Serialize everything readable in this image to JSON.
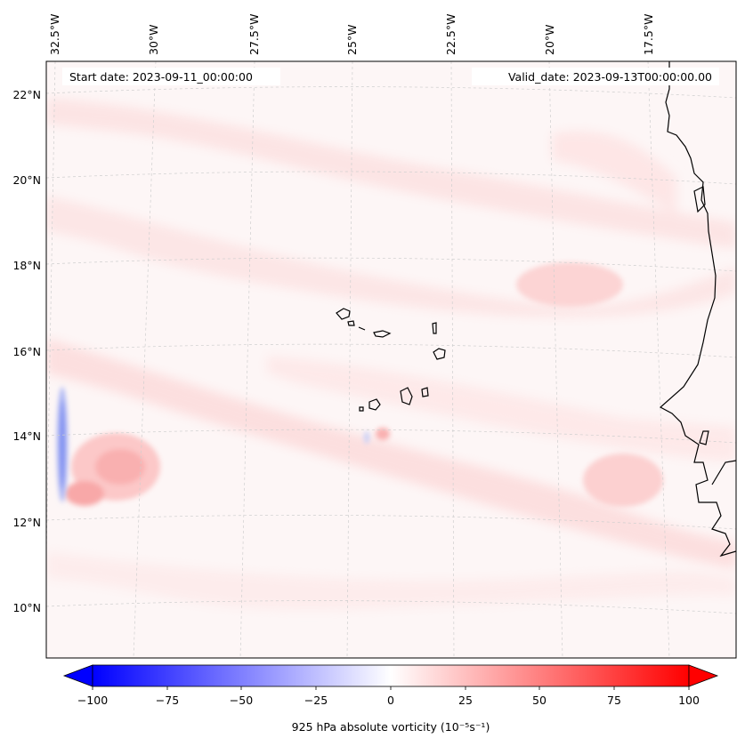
{
  "map": {
    "start_label": "Start date: 2023-09-11_00:00:00",
    "valid_label": "Valid_date: 2023-09-13T00:00:00.00",
    "projection": "conic (meridians converging southward)",
    "gridlines": "dashed light grey",
    "lon_ticks": [
      "32.5°W",
      "30°W",
      "27.5°W",
      "25°W",
      "22.5°W",
      "20°W",
      "17.5°W"
    ],
    "lat_ticks": [
      "22°N",
      "20°N",
      "18°N",
      "16°N",
      "14°N",
      "12°N",
      "10°N"
    ],
    "features": [
      {
        "name": "Cape Verde Islands",
        "type": "island group"
      },
      {
        "name": "West African coastline",
        "type": "coastline"
      }
    ],
    "field_description": "weak positive vorticity bands (pink) across domain; strongest maxima near 13°N 31–32°W (~30–40); narrow negative strip near 32.5°W 12–15°N (~-25)"
  },
  "colorbar": {
    "label": "925 hPa absolute vorticity (10⁻⁵s⁻¹)",
    "ticks": [
      "−100",
      "−75",
      "−50",
      "−25",
      "0",
      "25",
      "50",
      "75",
      "100"
    ],
    "range": [
      -100,
      100
    ],
    "colormap": "bwr",
    "extend": "both"
  },
  "colors": {
    "negative": "#0000ff",
    "zero": "#ffffff",
    "positive": "#ff0000",
    "background_field": "#fdf6f6",
    "gridline": "#cccccc"
  }
}
